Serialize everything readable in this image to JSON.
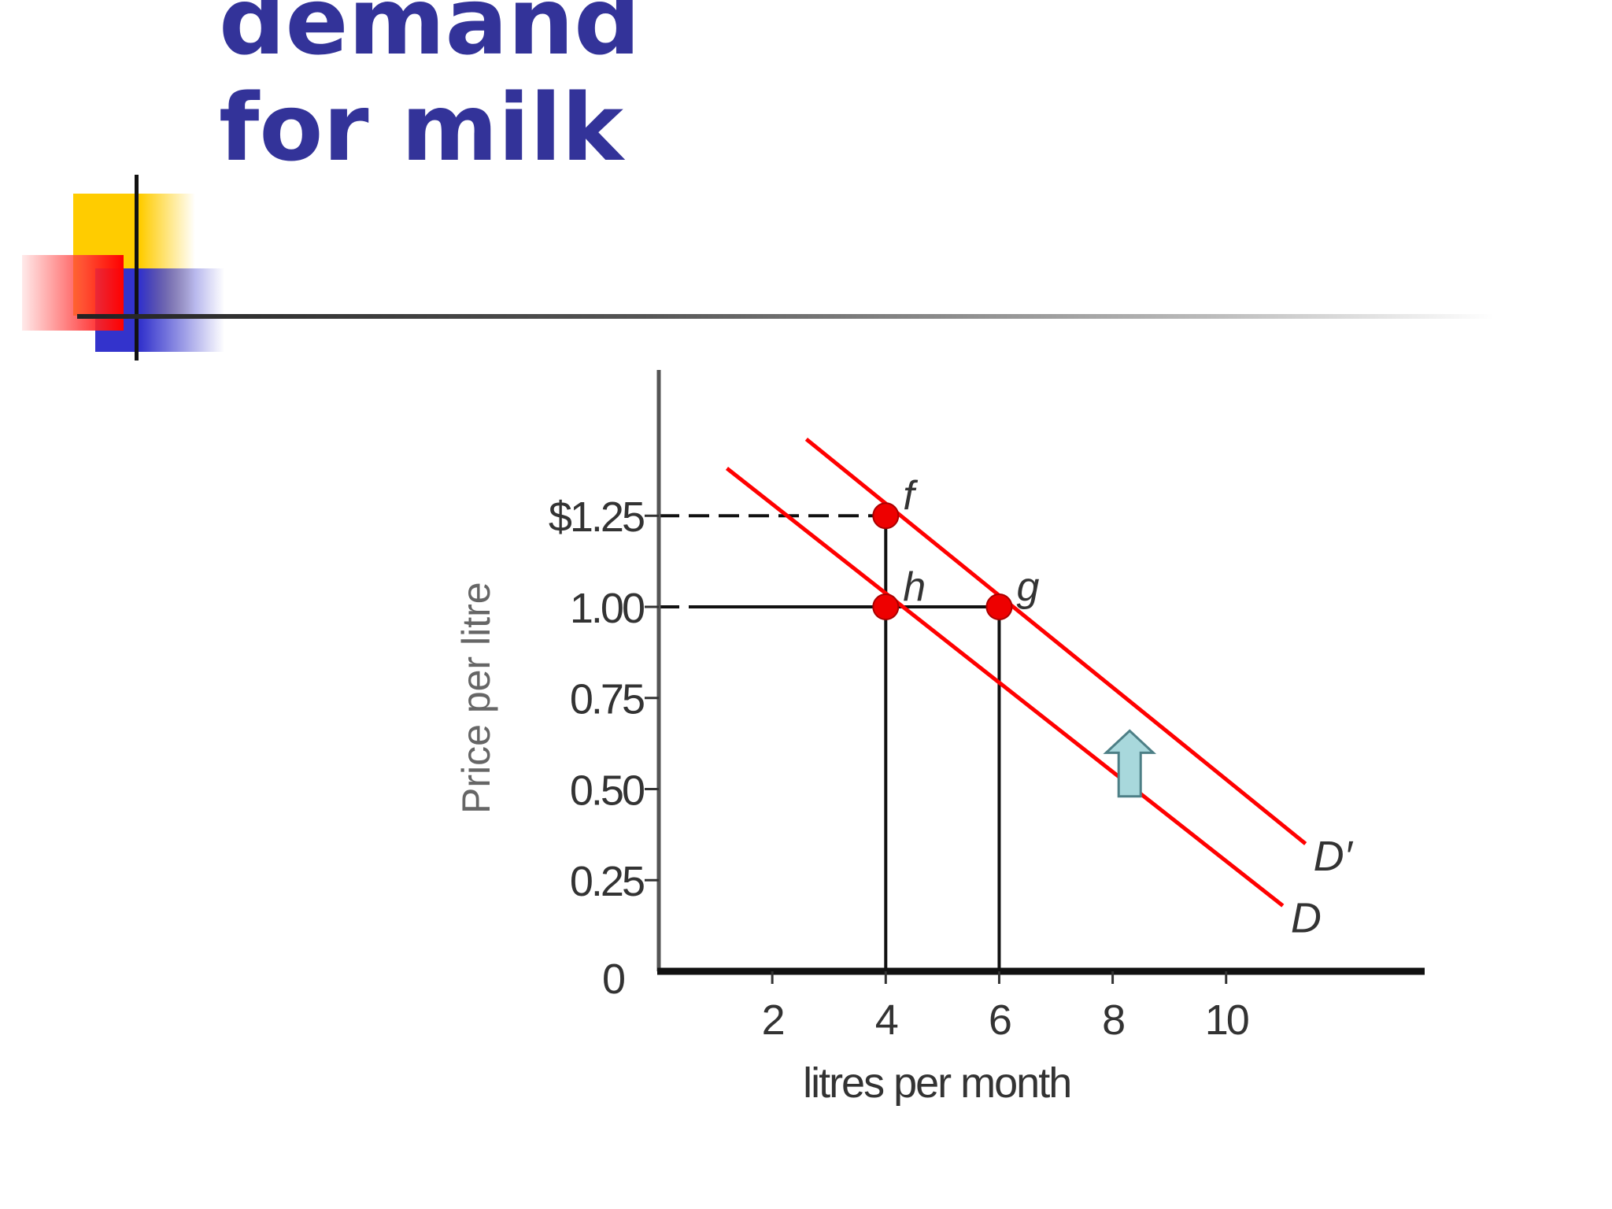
{
  "slide": {
    "title_lines": [
      "demand",
      "for milk"
    ],
    "colors": {
      "title": "#333399",
      "curve": "#ff0000",
      "point": "#ee0000",
      "shift_arrow": "#a8d8dc"
    }
  },
  "chart_data": {
    "type": "line",
    "title": "demand for milk",
    "xlabel": "litres per month",
    "ylabel": "Price per litre",
    "xlim": [
      0,
      13.5
    ],
    "ylim": [
      0,
      1.65
    ],
    "x_ticks": [
      2,
      4,
      6,
      8,
      10
    ],
    "x_tick_labels": [
      "2",
      "4",
      "6",
      "8",
      "10"
    ],
    "y_ticks": [
      0.25,
      0.5,
      0.75,
      1.0,
      1.25
    ],
    "y_tick_labels": [
      "0.25",
      "0.50",
      "0.75",
      "1.00",
      "$1.25"
    ],
    "origin_label": "0",
    "grid": false,
    "series": [
      {
        "name": "D",
        "x": [
          1.2,
          11.0
        ],
        "y": [
          1.38,
          0.18
        ]
      },
      {
        "name": "D′",
        "x": [
          2.6,
          11.4
        ],
        "y": [
          1.46,
          0.35
        ]
      }
    ],
    "points": [
      {
        "label": "f",
        "x": 4,
        "y": 1.25
      },
      {
        "label": "h",
        "x": 4,
        "y": 1.0
      },
      {
        "label": "g",
        "x": 6,
        "y": 1.0
      }
    ],
    "annotations": {
      "shift": "up arrow from D to D′"
    }
  }
}
